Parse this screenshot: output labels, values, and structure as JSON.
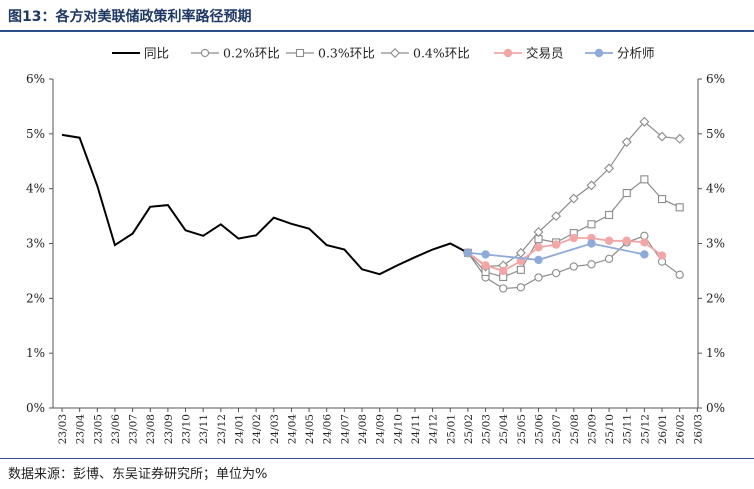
{
  "figure_title": "图13：各方对美联储政策利率路径预期",
  "source_note": "数据来源：彭博、东吴证券研究所；单位为%",
  "chart_data": {
    "type": "line",
    "xlabel": "",
    "ylabel": "",
    "ylim": [
      0,
      6
    ],
    "yticks": [
      "0%",
      "1%",
      "2%",
      "3%",
      "4%",
      "5%",
      "6%"
    ],
    "y2ticks": [
      "0%",
      "1%",
      "2%",
      "3%",
      "4%",
      "5%",
      "6%"
    ],
    "legend_position": "top",
    "grid": false,
    "x": [
      "23/03",
      "23/04",
      "23/05",
      "23/06",
      "23/07",
      "23/08",
      "23/09",
      "23/10",
      "23/11",
      "23/12",
      "24/01",
      "24/02",
      "24/03",
      "24/04",
      "24/05",
      "24/06",
      "24/07",
      "24/08",
      "24/09",
      "24/10",
      "24/11",
      "24/12",
      "25/01",
      "25/02",
      "25/03",
      "25/04",
      "25/05",
      "25/06",
      "25/07",
      "25/08",
      "25/09",
      "25/10",
      "25/11",
      "25/12",
      "26/01",
      "26/02",
      "26/03"
    ],
    "series": [
      {
        "name": "同比",
        "color": "#000000",
        "marker": "none",
        "values": [
          4.98,
          4.93,
          4.05,
          2.97,
          3.18,
          3.67,
          3.7,
          3.24,
          3.14,
          3.35,
          3.09,
          3.15,
          3.47,
          3.36,
          3.27,
          2.97,
          2.89,
          2.53,
          2.44,
          2.6,
          2.75,
          2.89,
          3.0,
          2.83,
          null,
          null,
          null,
          null,
          null,
          null,
          null,
          null,
          null,
          null,
          null,
          null,
          null
        ]
      },
      {
        "name": "0.2%环比",
        "color": "#8c8c8c",
        "marker": "circle",
        "values": [
          null,
          null,
          null,
          null,
          null,
          null,
          null,
          null,
          null,
          null,
          null,
          null,
          null,
          null,
          null,
          null,
          null,
          null,
          null,
          null,
          null,
          null,
          null,
          2.83,
          2.38,
          2.18,
          2.2,
          2.38,
          2.46,
          2.58,
          2.62,
          2.72,
          3.02,
          3.14,
          2.67,
          2.43,
          null
        ]
      },
      {
        "name": "0.3%环比",
        "color": "#8c8c8c",
        "marker": "square",
        "values": [
          null,
          null,
          null,
          null,
          null,
          null,
          null,
          null,
          null,
          null,
          null,
          null,
          null,
          null,
          null,
          null,
          null,
          null,
          null,
          null,
          null,
          null,
          null,
          2.83,
          2.48,
          2.39,
          2.52,
          3.08,
          3.02,
          3.19,
          3.35,
          3.52,
          3.92,
          4.17,
          3.81,
          3.66,
          null
        ]
      },
      {
        "name": "0.4%环比",
        "color": "#8c8c8c",
        "marker": "diamond",
        "values": [
          null,
          null,
          null,
          null,
          null,
          null,
          null,
          null,
          null,
          null,
          null,
          null,
          null,
          null,
          null,
          null,
          null,
          null,
          null,
          null,
          null,
          null,
          null,
          2.83,
          2.58,
          2.6,
          2.83,
          3.21,
          3.5,
          3.82,
          4.06,
          4.37,
          4.85,
          5.22,
          4.95,
          4.91,
          null
        ]
      },
      {
        "name": "交易员",
        "color": "#f4a6a6",
        "marker": "filled-circle",
        "values": [
          null,
          null,
          null,
          null,
          null,
          null,
          null,
          null,
          null,
          null,
          null,
          null,
          null,
          null,
          null,
          null,
          null,
          null,
          null,
          null,
          null,
          null,
          null,
          2.83,
          2.6,
          2.5,
          2.68,
          2.93,
          2.98,
          3.1,
          3.1,
          3.05,
          3.05,
          3.02,
          2.78,
          null,
          null
        ]
      },
      {
        "name": "分析师",
        "color": "#8eaad9",
        "marker": "filled-circle-sparse",
        "values": [
          null,
          null,
          null,
          null,
          null,
          null,
          null,
          null,
          null,
          null,
          null,
          null,
          null,
          null,
          null,
          null,
          null,
          null,
          null,
          null,
          null,
          null,
          null,
          2.83,
          2.8,
          null,
          null,
          2.7,
          null,
          null,
          3.0,
          null,
          null,
          2.8,
          null,
          null,
          null
        ]
      }
    ]
  }
}
